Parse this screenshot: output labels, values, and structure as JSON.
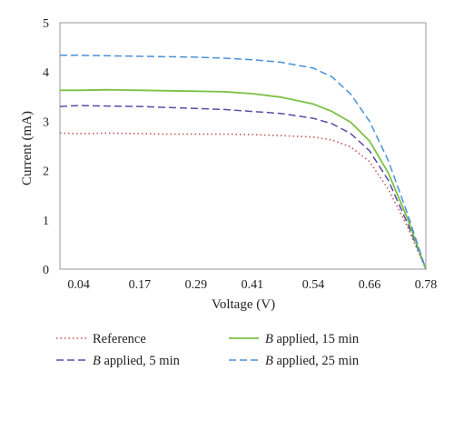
{
  "chart_data": {
    "type": "line",
    "xlabel": "Voltage (V)",
    "ylabel": "Current (mA)",
    "x_ticks": [
      "0.04",
      "0.17",
      "0.29",
      "0.41",
      "0.54",
      "0.66",
      "0.78"
    ],
    "ylim": [
      0,
      5
    ],
    "y_ticks": [
      0,
      1,
      2,
      3,
      4,
      5
    ],
    "grid": false,
    "legend_position": "bottom",
    "x": [
      0.0,
      0.04,
      0.1,
      0.17,
      0.23,
      0.29,
      0.35,
      0.41,
      0.47,
      0.54,
      0.58,
      0.62,
      0.66,
      0.7,
      0.74,
      0.78
    ],
    "series": [
      {
        "name": "Reference",
        "legend_prefix": "",
        "legend_suffix": "Reference",
        "color": "#c0504d",
        "dash": "1.5 3",
        "stroke_width": 1.5,
        "values": [
          2.76,
          2.75,
          2.76,
          2.75,
          2.74,
          2.74,
          2.74,
          2.73,
          2.71,
          2.68,
          2.62,
          2.48,
          2.18,
          1.62,
          0.88,
          0.0
        ]
      },
      {
        "name": "B applied, 5 min",
        "legend_prefix": "B",
        "legend_suffix": " applied, 5 min",
        "color": "#5b4ba8",
        "dash": "8 4",
        "stroke_width": 1.5,
        "values": [
          3.3,
          3.32,
          3.31,
          3.3,
          3.28,
          3.26,
          3.24,
          3.2,
          3.16,
          3.06,
          2.95,
          2.75,
          2.4,
          1.8,
          0.95,
          0.0
        ]
      },
      {
        "name": "B applied, 15 min",
        "legend_prefix": "B",
        "legend_suffix": " applied, 15 min",
        "color": "#7bc143",
        "dash": "",
        "stroke_width": 1.8,
        "values": [
          3.63,
          3.63,
          3.64,
          3.63,
          3.62,
          3.61,
          3.6,
          3.56,
          3.49,
          3.35,
          3.2,
          2.98,
          2.6,
          1.95,
          1.05,
          0.0
        ]
      },
      {
        "name": "B applied, 25 min",
        "legend_prefix": "B",
        "legend_suffix": " applied, 25 min",
        "color": "#4a90d9",
        "dash": "8 4",
        "stroke_width": 1.5,
        "values": [
          4.34,
          4.34,
          4.33,
          4.32,
          4.31,
          4.3,
          4.28,
          4.25,
          4.2,
          4.08,
          3.9,
          3.55,
          3.0,
          2.2,
          1.15,
          0.0
        ]
      }
    ]
  }
}
